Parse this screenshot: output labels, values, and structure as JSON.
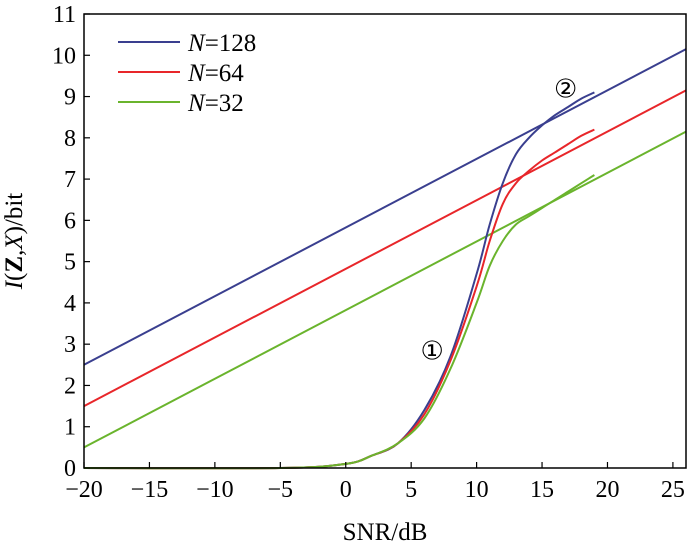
{
  "chart_data": {
    "type": "line",
    "xlabel": "SNR/dB",
    "ylabel": "I(Z,X)/bit",
    "xlim": [
      -20,
      26
    ],
    "ylim": [
      0,
      11
    ],
    "xticks": [
      -20,
      -15,
      -10,
      -5,
      0,
      5,
      10,
      15,
      20,
      25
    ],
    "xtick_labels": [
      "−20",
      "−15",
      "−10",
      "−5",
      "0",
      "5",
      "10",
      "15",
      "20",
      "25"
    ],
    "yticks": [
      0,
      1,
      2,
      3,
      4,
      5,
      6,
      7,
      8,
      9,
      10,
      11
    ],
    "ytick_labels": [
      "0",
      "1",
      "2",
      "3",
      "4",
      "5",
      "6",
      "7",
      "8",
      "9",
      "10",
      "11"
    ],
    "legend_position": "top-left",
    "series": [
      {
        "name": "N=128",
        "legend_var": "N",
        "legend_value": "=128",
        "color": "#3a3f8f",
        "x": [
          -20,
          26
        ],
        "y": [
          2.5,
          10.15
        ]
      },
      {
        "name": "N=64",
        "legend_var": "N",
        "legend_value": "=64",
        "color": "#e8262a",
        "x": [
          -20,
          26
        ],
        "y": [
          1.5,
          9.15
        ]
      },
      {
        "name": "N=32",
        "legend_var": "N",
        "legend_value": "=32",
        "color": "#6ab42d",
        "x": [
          -20,
          26
        ],
        "y": [
          0.5,
          8.15
        ]
      }
    ],
    "sigmoid_series": [
      {
        "color": "#3a3f8f",
        "x": [
          -20,
          -5,
          0,
          2,
          4,
          6,
          8,
          10,
          11,
          12,
          13,
          14,
          15,
          16,
          17,
          18,
          19
        ],
        "y": [
          0,
          0,
          0.1,
          0.3,
          0.6,
          1.4,
          2.7,
          4.7,
          5.9,
          6.9,
          7.6,
          8.0,
          8.3,
          8.55,
          8.75,
          8.95,
          9.1
        ]
      },
      {
        "color": "#e8262a",
        "x": [
          -20,
          -5,
          0,
          2,
          4,
          6,
          8,
          10,
          11,
          12,
          13,
          14,
          15,
          16,
          17,
          18,
          19
        ],
        "y": [
          0,
          0,
          0.1,
          0.3,
          0.6,
          1.3,
          2.6,
          4.4,
          5.5,
          6.4,
          6.9,
          7.2,
          7.45,
          7.65,
          7.85,
          8.05,
          8.2
        ]
      },
      {
        "color": "#6ab42d",
        "x": [
          -20,
          -5,
          0,
          2,
          4,
          6,
          8,
          10,
          11,
          12,
          13,
          14,
          15,
          16,
          17,
          18,
          19
        ],
        "y": [
          0,
          0,
          0.1,
          0.3,
          0.6,
          1.2,
          2.4,
          4.0,
          4.9,
          5.5,
          5.9,
          6.1,
          6.3,
          6.5,
          6.7,
          6.9,
          7.1
        ]
      }
    ],
    "annotations": [
      {
        "text": "①",
        "x": 6.6,
        "y": 2.85
      },
      {
        "text": "②",
        "x": 16.8,
        "y": 9.2
      }
    ]
  }
}
